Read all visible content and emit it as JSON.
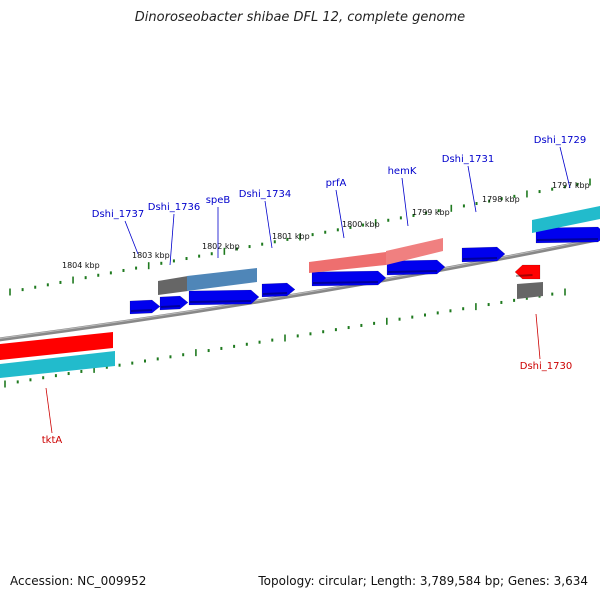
{
  "title": "Dinoroseobacter shibae DFL 12, complete genome",
  "footer": {
    "accession": "Accession: NC_009952",
    "summary": "Topology: circular; Length: 3,789,584 bp; Genes: 3,634"
  },
  "colors": {
    "backbone": "#888888",
    "tick": "#1f7a1f",
    "gene_forward": "#0000ee",
    "gene_reverse": "#ff0000",
    "rna_teal": "#22bbcc",
    "pseudo_grey": "#666666",
    "label_forward": "#0000cc",
    "label_reverse": "#cc0000"
  },
  "scale_labels": [
    "1804 kbp",
    "1803 kbp",
    "1802 kbp",
    "1801 kbp",
    "1800 kbp",
    "1799 kbp",
    "1798 kbp",
    "1797 kbp"
  ],
  "gene_labels": {
    "forward": [
      "Dshi_1737",
      "Dshi_1736",
      "speB",
      "Dshi_1734",
      "prfA",
      "hemK",
      "Dshi_1731",
      "Dshi_1729"
    ],
    "reverse": [
      "Dshi_1730",
      "tktA"
    ]
  }
}
